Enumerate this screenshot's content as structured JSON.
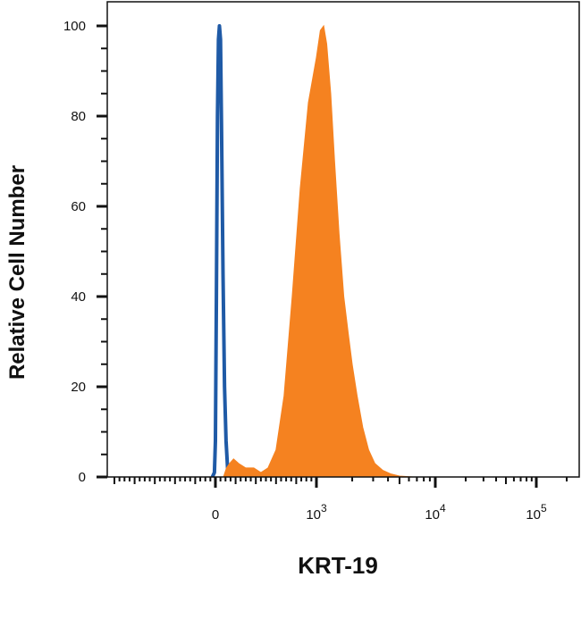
{
  "chart_data": {
    "type": "histogram",
    "xlabel": "KRT-19",
    "ylabel": "Relative Cell Number",
    "x_scale": "biexponential",
    "ylim": [
      0,
      100
    ],
    "grid": false,
    "legend": "none",
    "y_ticks": [
      "0",
      "20",
      "40",
      "60",
      "80",
      "100"
    ],
    "x_ticks": [
      {
        "base": "0",
        "exp": ""
      },
      {
        "base": "10",
        "exp": "3"
      },
      {
        "base": "10",
        "exp": "4"
      },
      {
        "base": "10",
        "exp": "5"
      }
    ],
    "series": [
      {
        "style": "outline",
        "color": "#1f5aa6",
        "points": [
          [
            -30,
            0
          ],
          [
            -10,
            1
          ],
          [
            0,
            8
          ],
          [
            10,
            40
          ],
          [
            20,
            80
          ],
          [
            30,
            97
          ],
          [
            40,
            100
          ],
          [
            50,
            97
          ],
          [
            60,
            78
          ],
          [
            75,
            45
          ],
          [
            90,
            20
          ],
          [
            105,
            8
          ],
          [
            120,
            2
          ],
          [
            135,
            0
          ]
        ]
      },
      {
        "style": "filled",
        "color": "#f58220",
        "points": [
          [
            -300,
            0
          ],
          [
            80,
            0
          ],
          [
            110,
            2
          ],
          [
            140,
            3
          ],
          [
            180,
            4
          ],
          [
            230,
            3
          ],
          [
            300,
            2
          ],
          [
            380,
            2
          ],
          [
            450,
            1
          ],
          [
            520,
            2
          ],
          [
            600,
            6
          ],
          [
            680,
            18
          ],
          [
            760,
            40
          ],
          [
            840,
            64
          ],
          [
            920,
            83
          ],
          [
            1000,
            93
          ],
          [
            1080,
            99
          ],
          [
            1150,
            100
          ],
          [
            1220,
            96
          ],
          [
            1320,
            85
          ],
          [
            1420,
            70
          ],
          [
            1550,
            54
          ],
          [
            1700,
            40
          ],
          [
            1850,
            32
          ],
          [
            2000,
            25
          ],
          [
            2200,
            18
          ],
          [
            2450,
            11
          ],
          [
            2750,
            6
          ],
          [
            3100,
            3
          ],
          [
            3600,
            1.5
          ],
          [
            4200,
            0.7
          ],
          [
            5000,
            0.2
          ],
          [
            6500,
            0
          ],
          [
            100000,
            0
          ]
        ]
      }
    ]
  }
}
